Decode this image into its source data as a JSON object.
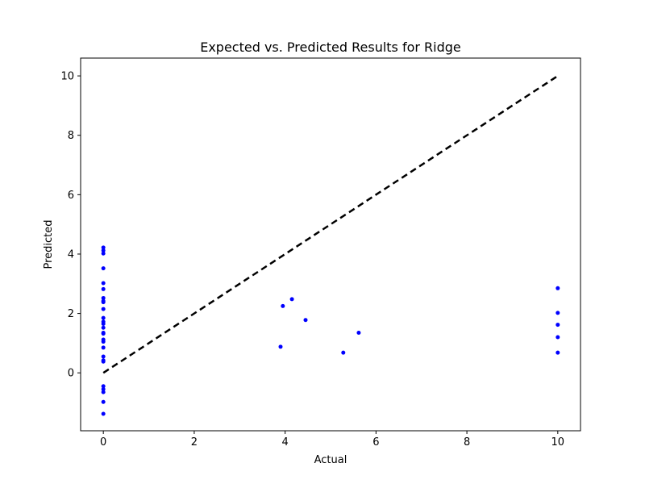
{
  "chart_data": {
    "type": "scatter",
    "title": "Expected vs. Predicted Results for Ridge",
    "xlabel": "Actual",
    "ylabel": "Predicted",
    "xlim": [
      -0.5,
      10.5
    ],
    "ylim": [
      -1.95,
      10.6
    ],
    "xticks": [
      0,
      2,
      4,
      6,
      8,
      10
    ],
    "yticks": [
      0,
      2,
      4,
      6,
      8,
      10
    ],
    "grid": false,
    "point_color": "#0000ff",
    "line_color": "#000000",
    "series": [
      {
        "type": "scatter",
        "points": [
          {
            "x": 0,
            "y": 4.22
          },
          {
            "x": 0,
            "y": 4.12
          },
          {
            "x": 0,
            "y": 4.02
          },
          {
            "x": 0,
            "y": 3.52
          },
          {
            "x": 0,
            "y": 3.02
          },
          {
            "x": 0,
            "y": 2.82
          },
          {
            "x": 0,
            "y": 2.52
          },
          {
            "x": 0,
            "y": 2.42
          },
          {
            "x": 0,
            "y": 2.38
          },
          {
            "x": 0,
            "y": 2.15
          },
          {
            "x": 0,
            "y": 1.85
          },
          {
            "x": 0,
            "y": 1.72
          },
          {
            "x": 0,
            "y": 1.65
          },
          {
            "x": 0,
            "y": 1.52
          },
          {
            "x": 0,
            "y": 1.35
          },
          {
            "x": 0,
            "y": 1.32
          },
          {
            "x": 0,
            "y": 1.12
          },
          {
            "x": 0,
            "y": 1.05
          },
          {
            "x": 0,
            "y": 0.85
          },
          {
            "x": 0,
            "y": 0.55
          },
          {
            "x": 0,
            "y": 0.42
          },
          {
            "x": 0,
            "y": 0.38
          },
          {
            "x": 0,
            "y": -0.45
          },
          {
            "x": 0,
            "y": -0.55
          },
          {
            "x": 0,
            "y": -0.65
          },
          {
            "x": 0,
            "y": -0.98
          },
          {
            "x": 0,
            "y": -1.38
          },
          {
            "x": 3.9,
            "y": 0.88
          },
          {
            "x": 3.95,
            "y": 2.25
          },
          {
            "x": 4.15,
            "y": 2.48
          },
          {
            "x": 4.45,
            "y": 1.78
          },
          {
            "x": 5.28,
            "y": 0.68
          },
          {
            "x": 5.62,
            "y": 1.35
          },
          {
            "x": 10,
            "y": 2.85
          },
          {
            "x": 10,
            "y": 2.02
          },
          {
            "x": 10,
            "y": 1.62
          },
          {
            "x": 10,
            "y": 1.2
          },
          {
            "x": 10,
            "y": 0.68
          }
        ]
      },
      {
        "type": "line",
        "style": "dashed",
        "x": [
          0,
          10
        ],
        "y": [
          0,
          10
        ]
      }
    ]
  }
}
